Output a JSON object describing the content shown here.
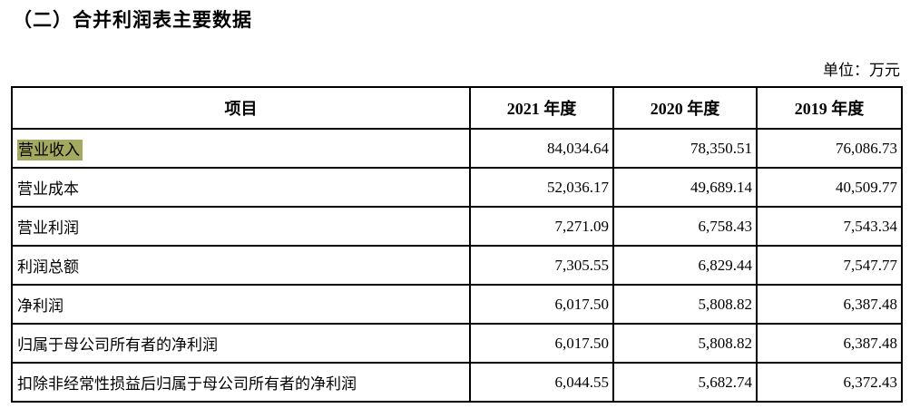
{
  "page": {
    "title": "（二）合并利润表主要数据",
    "unit_label": "单位：万元"
  },
  "colors": {
    "highlight": "#a3a95f",
    "border": "#000000",
    "text": "#000000",
    "background": "#ffffff"
  },
  "table": {
    "headers": [
      "项目",
      "2021 年度",
      "2020 年度",
      "2019 年度"
    ],
    "rows": [
      {
        "label": "营业收入",
        "highlighted": true,
        "values": [
          "84,034.64",
          "78,350.51",
          "76,086.73"
        ]
      },
      {
        "label": "营业成本",
        "highlighted": false,
        "values": [
          "52,036.17",
          "49,689.14",
          "40,509.77"
        ]
      },
      {
        "label": "营业利润",
        "highlighted": false,
        "values": [
          "7,271.09",
          "6,758.43",
          "7,543.34"
        ]
      },
      {
        "label": "利润总额",
        "highlighted": false,
        "values": [
          "7,305.55",
          "6,829.44",
          "7,547.77"
        ]
      },
      {
        "label": "净利润",
        "highlighted": false,
        "values": [
          "6,017.50",
          "5,808.82",
          "6,387.48"
        ]
      },
      {
        "label": "归属于母公司所有者的净利润",
        "highlighted": false,
        "values": [
          "6,017.50",
          "5,808.82",
          "6,387.48"
        ]
      },
      {
        "label": "扣除非经常性损益后归属于母公司所有者的净利润",
        "highlighted": false,
        "values": [
          "6,044.55",
          "5,682.74",
          "6,372.43"
        ]
      }
    ]
  }
}
